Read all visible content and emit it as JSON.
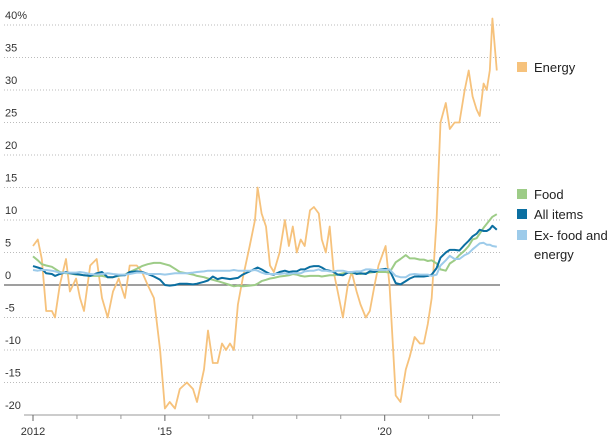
{
  "chart_data": {
    "type": "line",
    "x": [
      2012.0,
      2012.11,
      2012.2,
      2012.3,
      2012.43,
      2012.5,
      2012.61,
      2012.75,
      2012.84,
      2012.98,
      2013.07,
      2013.16,
      2013.3,
      2013.45,
      2013.57,
      2013.7,
      2013.82,
      2013.95,
      2014.09,
      2014.2,
      2014.36,
      2014.48,
      2014.61,
      2014.75,
      2014.89,
      2015.0,
      2015.11,
      2015.23,
      2015.34,
      2015.5,
      2015.64,
      2015.73,
      2015.89,
      2015.98,
      2016.09,
      2016.2,
      2016.3,
      2016.39,
      2016.48,
      2016.57,
      2016.66,
      2016.77,
      2016.93,
      2017.05,
      2017.11,
      2017.2,
      2017.3,
      2017.39,
      2017.48,
      2017.61,
      2017.73,
      2017.82,
      2017.91,
      2018.0,
      2018.09,
      2018.18,
      2018.3,
      2018.39,
      2018.5,
      2018.57,
      2018.66,
      2018.75,
      2018.84,
      2018.93,
      2019.05,
      2019.16,
      2019.25,
      2019.36,
      2019.45,
      2019.57,
      2019.66,
      2019.77,
      2019.86,
      2020.02,
      2020.11,
      2020.25,
      2020.36,
      2020.48,
      2020.57,
      2020.68,
      2020.8,
      2020.89,
      2020.98,
      2021.07,
      2021.18,
      2021.27,
      2021.39,
      2021.48,
      2021.59,
      2021.7,
      2021.82,
      2021.91,
      2022.0,
      2022.09,
      2022.16,
      2022.25,
      2022.32,
      2022.39,
      2022.45,
      2022.55
    ],
    "series": [
      {
        "name": "Energy",
        "color": "#f6c27c",
        "values": [
          6,
          7,
          4,
          -4,
          -4,
          -5,
          0,
          4,
          -1,
          1,
          -2,
          -4,
          3,
          4,
          -2,
          -5,
          -1,
          1,
          -2,
          3,
          3,
          2,
          0,
          -2,
          -10,
          -19,
          -18,
          -19,
          -16,
          -15,
          -16,
          -18,
          -13,
          -7,
          -12,
          -12,
          -9,
          -10,
          -9,
          -10,
          -3,
          1,
          6,
          10,
          15,
          11,
          9,
          3,
          2,
          5,
          10,
          6,
          9,
          5,
          7,
          6,
          11.5,
          12,
          11,
          7,
          5,
          9,
          2,
          -1,
          -5,
          0,
          2,
          -1,
          -3,
          -5,
          -4,
          0,
          3,
          6,
          0,
          -17,
          -18,
          -13,
          -11,
          -8,
          -9,
          -9,
          -6,
          -2,
          10,
          25,
          28,
          24,
          25,
          25,
          30,
          33,
          29,
          27,
          26,
          31,
          30,
          33,
          41,
          33
        ]
      },
      {
        "name": "Food",
        "color": "#9dcc87",
        "values": [
          4.4,
          3.8,
          3.2,
          3.0,
          2.8,
          2.5,
          2.0,
          1.8,
          1.8,
          1.6,
          1.6,
          1.5,
          1.4,
          1.4,
          1.4,
          1.2,
          1.2,
          1.4,
          1.6,
          2.0,
          2.5,
          2.9,
          3.2,
          3.4,
          3.4,
          3.2,
          3.0,
          2.5,
          2.0,
          1.8,
          1.6,
          1.4,
          1.2,
          1.0,
          0.8,
          0.6,
          0.4,
          0.2,
          0.0,
          -0.2,
          -0.1,
          -0.2,
          -0.1,
          0.0,
          0.2,
          0.6,
          0.8,
          1.0,
          1.1,
          1.3,
          1.4,
          1.5,
          1.7,
          1.6,
          1.4,
          1.3,
          1.4,
          1.4,
          1.4,
          1.3,
          1.4,
          1.5,
          1.5,
          1.6,
          1.8,
          2.0,
          1.8,
          1.8,
          1.7,
          1.8,
          1.9,
          2.0,
          2.0,
          2.0,
          1.9,
          3.5,
          4.0,
          4.6,
          4.1,
          4.1,
          3.9,
          3.9,
          3.7,
          3.8,
          3.3,
          2.4,
          2.2,
          3.3,
          3.8,
          4.6,
          5.3,
          6.0,
          7.0,
          7.2,
          7.9,
          8.8,
          9.4,
          10.0,
          10.5,
          10.9
        ]
      },
      {
        "name": "All items",
        "color": "#0b6fa1",
        "values": [
          2.9,
          2.7,
          2.5,
          1.8,
          1.7,
          1.4,
          1.7,
          2.0,
          1.8,
          1.7,
          1.6,
          1.5,
          1.4,
          1.8,
          2.0,
          1.2,
          1.2,
          1.5,
          1.5,
          2.0,
          2.1,
          2.0,
          1.7,
          1.3,
          0.8,
          0.0,
          -0.1,
          0.0,
          0.2,
          0.2,
          0.1,
          0.2,
          0.5,
          0.7,
          1.3,
          0.9,
          1.1,
          1.0,
          0.9,
          1.0,
          1.1,
          1.6,
          2.1,
          2.5,
          2.7,
          2.4,
          2.0,
          1.7,
          1.6,
          2.0,
          2.2,
          2.0,
          2.1,
          2.1,
          2.4,
          2.4,
          2.8,
          2.9,
          2.9,
          2.7,
          2.3,
          2.2,
          2.0,
          1.6,
          1.5,
          1.9,
          2.0,
          1.7,
          1.8,
          1.7,
          2.1,
          2.0,
          2.3,
          2.5,
          2.3,
          0.3,
          0.1,
          0.6,
          1.0,
          1.3,
          1.3,
          1.3,
          1.4,
          1.6,
          2.6,
          4.2,
          5.0,
          5.4,
          5.4,
          5.3,
          6.2,
          6.8,
          7.5,
          7.9,
          8.5,
          8.3,
          8.3,
          8.6,
          9.1,
          8.5
        ]
      },
      {
        "name": "Ex- food and energy",
        "color": "#9dcbea",
        "values": [
          2.3,
          2.2,
          2.3,
          2.3,
          2.2,
          2.1,
          1.9,
          1.9,
          1.9,
          1.9,
          2.0,
          1.9,
          1.7,
          1.6,
          1.7,
          1.8,
          1.7,
          1.6,
          1.6,
          1.7,
          1.9,
          1.9,
          1.7,
          1.7,
          1.7,
          1.6,
          1.7,
          1.8,
          1.8,
          1.8,
          1.9,
          2.0,
          2.1,
          2.2,
          2.2,
          2.2,
          2.2,
          2.2,
          2.2,
          2.3,
          2.2,
          2.2,
          2.2,
          2.3,
          2.2,
          1.9,
          1.7,
          1.7,
          1.7,
          1.7,
          1.8,
          1.7,
          1.8,
          1.8,
          1.8,
          2.1,
          2.2,
          2.2,
          2.4,
          2.2,
          2.2,
          2.1,
          2.1,
          2.2,
          2.2,
          2.0,
          2.0,
          2.1,
          2.1,
          2.4,
          2.4,
          2.3,
          2.3,
          2.3,
          2.4,
          1.4,
          1.2,
          1.2,
          1.6,
          1.7,
          1.6,
          1.6,
          1.6,
          1.4,
          1.6,
          3.0,
          3.8,
          4.5,
          4.0,
          4.0,
          4.6,
          4.9,
          5.5,
          6.0,
          6.4,
          6.5,
          6.2,
          6.2,
          6.0,
          5.9
        ]
      }
    ],
    "xlim": [
      2012,
      2022.6
    ],
    "xticks": [
      {
        "value": 2012,
        "label": "2012"
      },
      {
        "value": 2015,
        "label": "'15"
      },
      {
        "value": 2020,
        "label": "'20"
      }
    ],
    "x_minor_ticks": [
      2013,
      2014,
      2016,
      2017,
      2018,
      2019,
      2021,
      2022
    ],
    "ylim": [
      -20,
      40
    ],
    "yticks": [
      -20,
      -15,
      -10,
      -5,
      0,
      5,
      10,
      15,
      20,
      25,
      30,
      35,
      {
        "value": 40,
        "label": "40%"
      }
    ],
    "grid": true
  }
}
